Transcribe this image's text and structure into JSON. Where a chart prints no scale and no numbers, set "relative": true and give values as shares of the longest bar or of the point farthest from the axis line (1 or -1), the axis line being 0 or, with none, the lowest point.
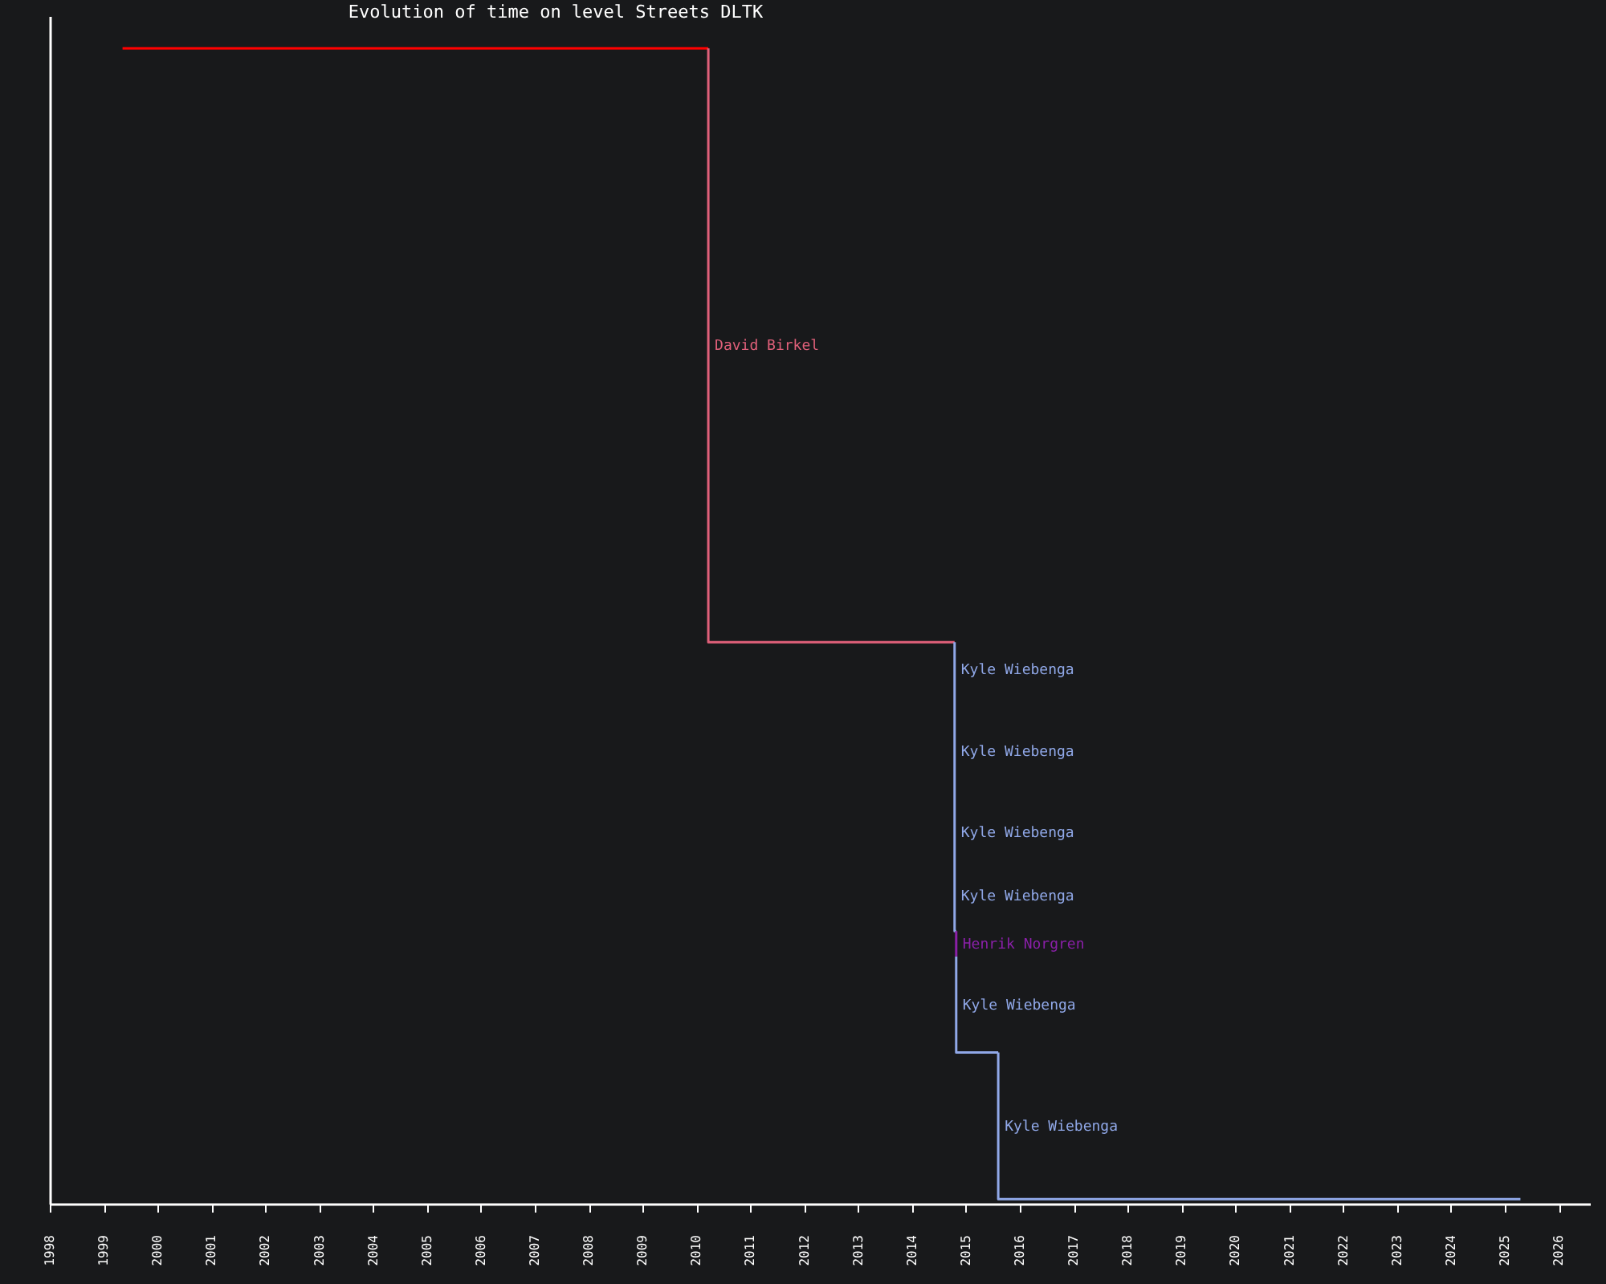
{
  "chart_data": {
    "type": "line",
    "title": "Evolution of time on level Streets DLTK",
    "relative": true,
    "series": [
      {
        "color": "#ff0000",
        "x": [
          1999.35,
          2010.22
        ],
        "values": [
          1,
          1
        ]
      },
      {
        "name": "David Birkel",
        "color": "#e0607a",
        "x": [
          2010.22,
          2010.22,
          2014.79
        ],
        "values": [
          1,
          0.486,
          0.486
        ]
      },
      {
        "name": "Kyle Wiebenga",
        "color": "#90a8e8",
        "x": [
          2014.79,
          2014.79,
          2014.79,
          2014.79,
          2014.79,
          2014.82
        ],
        "values": [
          0.486,
          0.439,
          0.345,
          0.298,
          0.236,
          0.236
        ]
      },
      {
        "name": "Henrik Norgren",
        "color": "#8a20a8",
        "x": [
          2014.82,
          2014.82
        ],
        "values": [
          0.236,
          0.214
        ]
      },
      {
        "name": "Kyle Wiebenga",
        "color": "#90a8e8",
        "x": [
          2014.82,
          2014.82,
          2015.6
        ],
        "values": [
          0.214,
          0.131,
          0.131
        ]
      },
      {
        "name": "Kyle Wiebenga",
        "color": "#90a8e8",
        "x": [
          2015.6,
          2015.6,
          2025.29
        ],
        "values": [
          0.131,
          0.004,
          0.004
        ]
      }
    ],
    "xlim": [
      1998,
      2026.58
    ],
    "xticks": [
      1998,
      1999,
      2000,
      2001,
      2002,
      2003,
      2004,
      2005,
      2006,
      2007,
      2008,
      2009,
      2010,
      2011,
      2012,
      2013,
      2014,
      2015,
      2016,
      2017,
      2018,
      2019,
      2020,
      2021,
      2022,
      2023,
      2024,
      2025,
      2026
    ],
    "grid": false,
    "line_style": "solid"
  }
}
